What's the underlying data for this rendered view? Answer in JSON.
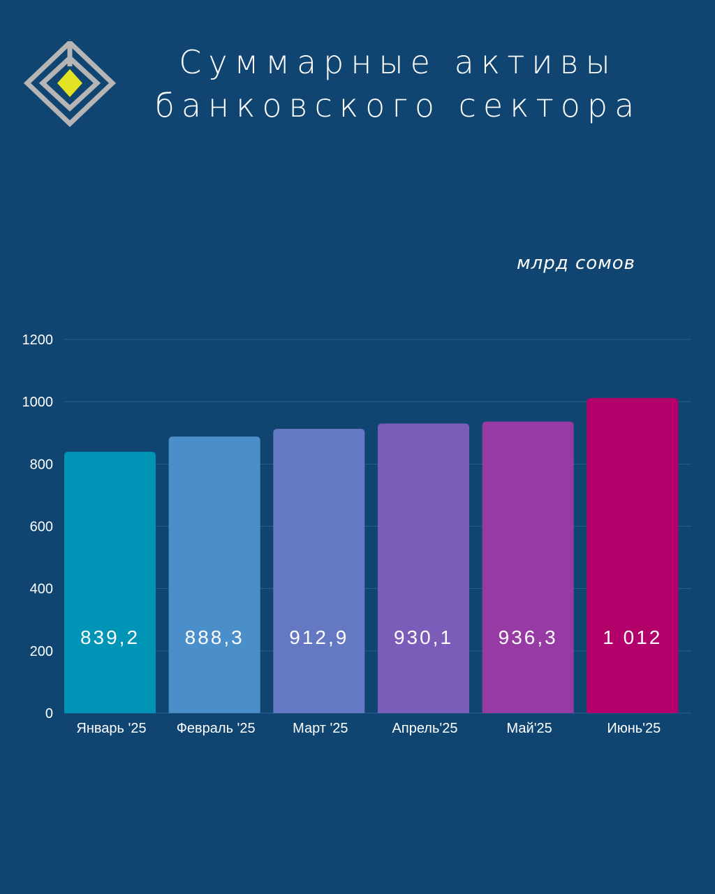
{
  "title": {
    "line1": "Суммарные активы",
    "line2": "банковского сектора"
  },
  "logo_icon": "diamond-logo-icon",
  "colors": {
    "background": "#0f4570",
    "gridline": "#2b5f8c",
    "text": "#ffffff",
    "logo_outline": "#b5b5b5",
    "logo_center": "#e3e324"
  },
  "chart_data": {
    "type": "bar",
    "unit": "млрд сомов",
    "categories": [
      "Январь '25",
      "Февраль '25",
      "Март '25",
      "Апрель'25",
      "Май'25",
      "Июнь'25"
    ],
    "values": [
      839.2,
      888.3,
      912.9,
      930.1,
      936.3,
      1012
    ],
    "value_labels": [
      "839,2",
      "888,3",
      "912,9",
      "930,1",
      "936,3",
      "1 012"
    ],
    "bar_colors": [
      "#0095b6",
      "#4a8fc9",
      "#6478c4",
      "#7c5cb9",
      "#973aa4",
      "#b4006a"
    ],
    "ylim": [
      0,
      1200
    ],
    "yticks": [
      0,
      200,
      400,
      600,
      800,
      1000,
      1200
    ],
    "grid": true,
    "legend": "none"
  }
}
